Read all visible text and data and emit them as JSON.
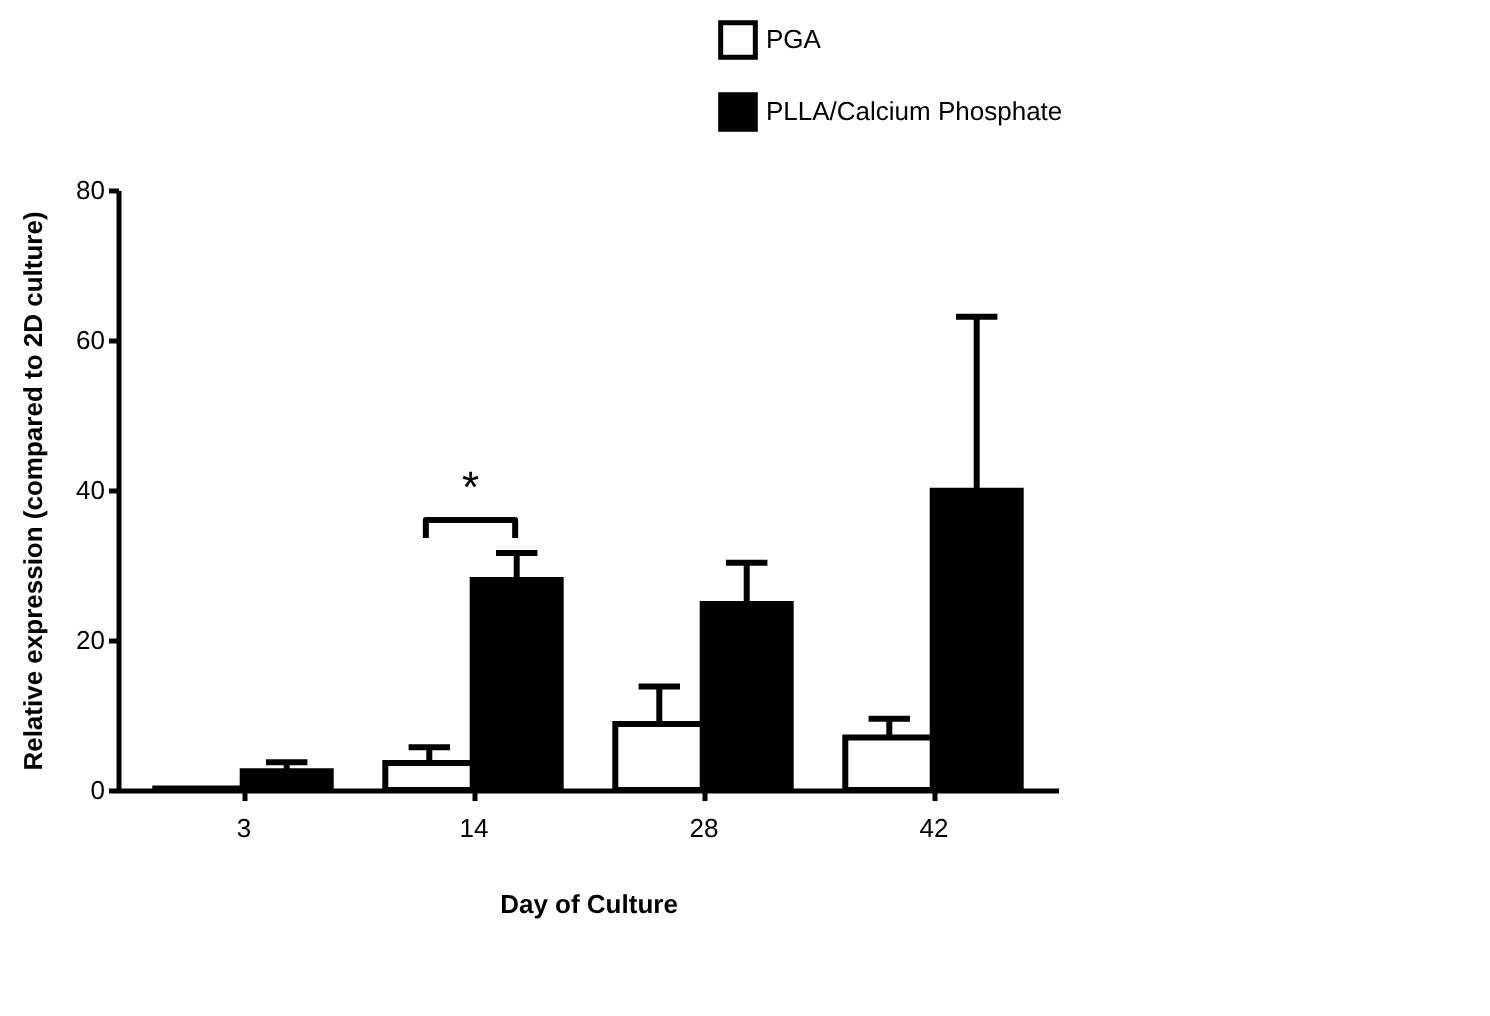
{
  "chart_data": {
    "type": "bar",
    "xlabel": "Day of Culture",
    "ylabel": "Relative expression (compared to 2D culture)",
    "categories": [
      "3",
      "14",
      "28",
      "42"
    ],
    "series": [
      {
        "name": "PGA",
        "color": "#ffffff",
        "values": [
          0.2,
          3.6,
          8.8,
          7.0
        ],
        "errors": [
          null,
          [
            3.6,
            5.7
          ],
          [
            8.8,
            13.8
          ],
          [
            7.0,
            9.5
          ]
        ]
      },
      {
        "name": "PLLA/Calcium Phosphate",
        "color": "#000000",
        "values": [
          2.5,
          28.0,
          24.8,
          39.9
        ],
        "errors": [
          [
            2.5,
            3.7
          ],
          [
            28.0,
            31.6
          ],
          [
            24.8,
            30.3
          ],
          [
            39.9,
            63.1
          ]
        ]
      }
    ],
    "ylim": [
      0,
      80
    ],
    "yticks": [
      0,
      20,
      40,
      60,
      80
    ],
    "grid": false,
    "legend": "top right",
    "annotations": [
      "*"
    ]
  }
}
